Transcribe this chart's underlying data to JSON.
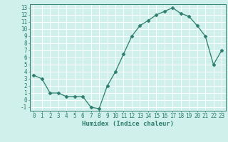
{
  "x": [
    0,
    1,
    2,
    3,
    4,
    5,
    6,
    7,
    8,
    9,
    10,
    11,
    12,
    13,
    14,
    15,
    16,
    17,
    18,
    19,
    20,
    21,
    22,
    23
  ],
  "y": [
    3.5,
    3.0,
    1.0,
    1.0,
    0.5,
    0.5,
    0.5,
    -1.0,
    -1.2,
    2.0,
    4.0,
    6.5,
    9.0,
    10.5,
    11.2,
    12.0,
    12.5,
    13.0,
    12.2,
    11.8,
    10.5,
    9.0,
    5.0,
    7.0
  ],
  "xlabel": "Humidex (Indice chaleur)",
  "ylim": [
    -1.5,
    13.5
  ],
  "xlim": [
    -0.5,
    23.5
  ],
  "yticks": [
    -1,
    0,
    1,
    2,
    3,
    4,
    5,
    6,
    7,
    8,
    9,
    10,
    11,
    12,
    13
  ],
  "xticks": [
    0,
    1,
    2,
    3,
    4,
    5,
    6,
    7,
    8,
    9,
    10,
    11,
    12,
    13,
    14,
    15,
    16,
    17,
    18,
    19,
    20,
    21,
    22,
    23
  ],
  "line_color": "#2e7d6e",
  "bg_color": "#cff0eb",
  "grid_color": "#ffffff",
  "marker": "D",
  "marker_size": 2.5,
  "xlabel_fontsize": 6.5,
  "tick_fontsize": 5.5
}
